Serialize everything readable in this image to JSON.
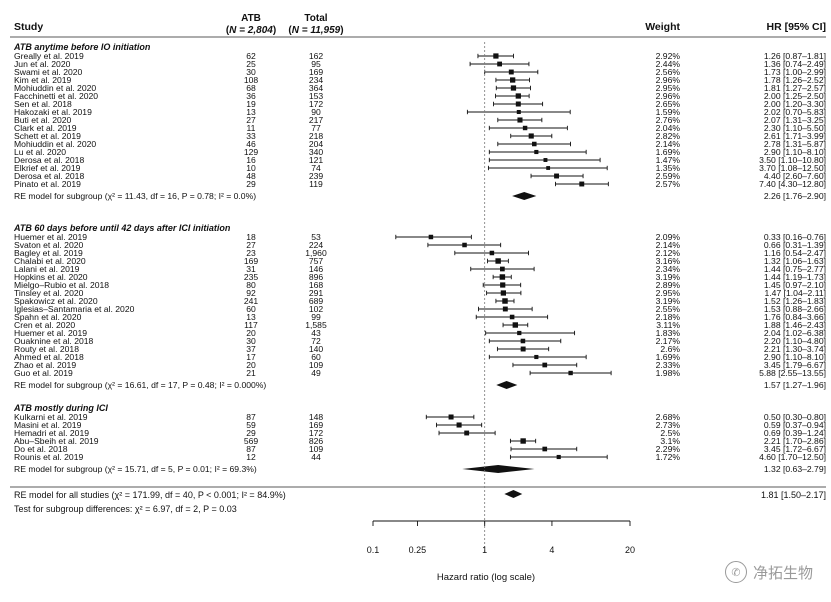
{
  "headers": {
    "study": "Study",
    "atb": "ATB",
    "atb_n": "N = 2,804",
    "total": "Total",
    "total_n": "N = 11,959",
    "weight": "Weight",
    "hr": "HR [95% CI]"
  },
  "chart_data": {
    "type": "forest",
    "x_scale": "log",
    "xlabel": "Hazard ratio (log scale)",
    "xlim": [
      0.1,
      20
    ],
    "xticks": [
      "0.1",
      "0.25",
      "1",
      "4",
      "20"
    ],
    "xtick_values": [
      0.1,
      0.25,
      1,
      4,
      20
    ],
    "reference_line": 1,
    "groups": [
      {
        "title": "ATB anytime before IO initiation",
        "studies": [
          {
            "study": "Greally et al. 2019",
            "atb": "62",
            "total": "162",
            "weight": "2.92%",
            "hr": 1.26,
            "lo": 0.87,
            "hi": 1.81,
            "ci": "1.26 [0.87–1.81]"
          },
          {
            "study": "Jun et al. 2020",
            "atb": "25",
            "total": "95",
            "weight": "2.44%",
            "hr": 1.36,
            "lo": 0.74,
            "hi": 2.49,
            "ci": "1.36 [0.74–2.49]"
          },
          {
            "study": "Swami et al. 2020",
            "atb": "30",
            "total": "169",
            "weight": "2.56%",
            "hr": 1.73,
            "lo": 1.0,
            "hi": 2.99,
            "ci": "1.73 [1.00–2.99]"
          },
          {
            "study": "Kim et al. 2019",
            "atb": "108",
            "total": "234",
            "weight": "2.96%",
            "hr": 1.78,
            "lo": 1.26,
            "hi": 2.52,
            "ci": "1.78 [1.26–2.52]"
          },
          {
            "study": "Mohiuddin et al. 2020",
            "atb": "68",
            "total": "364",
            "weight": "2.95%",
            "hr": 1.81,
            "lo": 1.27,
            "hi": 2.57,
            "ci": "1.81 [1.27–2.57]"
          },
          {
            "study": "Facchinetti et al. 2020",
            "atb": "36",
            "total": "153",
            "weight": "2.96%",
            "hr": 2.0,
            "lo": 1.25,
            "hi": 2.5,
            "ci": "2.00 [1.25–2.50]"
          },
          {
            "study": "Sen et al. 2018",
            "atb": "19",
            "total": "172",
            "weight": "2.65%",
            "hr": 2.0,
            "lo": 1.2,
            "hi": 3.3,
            "ci": "2.00 [1.20–3.30]"
          },
          {
            "study": "Hakozaki et al. 2019",
            "atb": "13",
            "total": "90",
            "weight": "1.59%",
            "hr": 2.02,
            "lo": 0.7,
            "hi": 5.83,
            "ci": "2.02 [0.70–5.83]"
          },
          {
            "study": "Buti et al. 2020",
            "atb": "27",
            "total": "217",
            "weight": "2.76%",
            "hr": 2.07,
            "lo": 1.31,
            "hi": 3.25,
            "ci": "2.07 [1.31–3.25]"
          },
          {
            "study": "Clark et al. 2019",
            "atb": "11",
            "total": "77",
            "weight": "2.04%",
            "hr": 2.3,
            "lo": 1.1,
            "hi": 5.5,
            "ci": "2.30 [1.10–5.50]"
          },
          {
            "study": "Schett et al. 2019",
            "atb": "33",
            "total": "218",
            "weight": "2.82%",
            "hr": 2.61,
            "lo": 1.71,
            "hi": 3.99,
            "ci": "2.61 [1.71–3.99]"
          },
          {
            "study": "Mohiuddin et al. 2020",
            "atb": "46",
            "total": "204",
            "weight": "2.14%",
            "hr": 2.78,
            "lo": 1.31,
            "hi": 5.87,
            "ci": "2.78 [1.31–5.87]"
          },
          {
            "study": "Lu et al. 2020",
            "atb": "129",
            "total": "340",
            "weight": "1.69%",
            "hr": 2.9,
            "lo": 1.1,
            "hi": 8.1,
            "ci": "2.90 [1.10–8.10]"
          },
          {
            "study": "Derosa et al. 2018",
            "atb": "16",
            "total": "121",
            "weight": "1.47%",
            "hr": 3.5,
            "lo": 1.1,
            "hi": 10.8,
            "ci": "3.50 [1.10–10.80]"
          },
          {
            "study": "Elkrief et al. 2019",
            "atb": "10",
            "total": "74",
            "weight": "1.35%",
            "hr": 3.7,
            "lo": 1.08,
            "hi": 12.5,
            "ci": "3.70 [1.08–12.50]"
          },
          {
            "study": "Derosa et al. 2018",
            "atb": "48",
            "total": "239",
            "weight": "2.59%",
            "hr": 4.4,
            "lo": 2.6,
            "hi": 7.6,
            "ci": "4.40 [2.60–7.60]"
          },
          {
            "study": "Pinato et al. 2019",
            "atb": "29",
            "total": "119",
            "weight": "2.57%",
            "hr": 7.4,
            "lo": 4.3,
            "hi": 12.8,
            "ci": "7.40 [4.30–12.80]"
          }
        ],
        "summary": {
          "label": "RE model for subgroup (χ² = 11.43, df = 16, P = 0.78; I² = 0.0%)",
          "hr": 2.26,
          "lo": 1.76,
          "hi": 2.9,
          "ci": "2.26 [1.76–2.90]"
        }
      },
      {
        "title": "ATB 60 days before until 42 days after ICI initiation",
        "studies": [
          {
            "study": "Huemer et al. 2019",
            "atb": "18",
            "total": "53",
            "weight": "2.09%",
            "hr": 0.33,
            "lo": 0.16,
            "hi": 0.76,
            "ci": "0.33 [0.16–0.76]"
          },
          {
            "study": "Svaton et al. 2020",
            "atb": "27",
            "total": "224",
            "weight": "2.14%",
            "hr": 0.66,
            "lo": 0.31,
            "hi": 1.39,
            "ci": "0.66 [0.31–1.39]"
          },
          {
            "study": "Bagley et al. 2019",
            "atb": "23",
            "total": "1,960",
            "weight": "2.12%",
            "hr": 1.16,
            "lo": 0.54,
            "hi": 2.47,
            "ci": "1.16 [0.54–2.47]"
          },
          {
            "study": "Chalabi et al. 2020",
            "atb": "169",
            "total": "757",
            "weight": "3.16%",
            "hr": 1.32,
            "lo": 1.06,
            "hi": 1.63,
            "ci": "1.32 [1.06–1.63]"
          },
          {
            "study": "Lalani et al. 2019",
            "atb": "31",
            "total": "146",
            "weight": "2.34%",
            "hr": 1.44,
            "lo": 0.75,
            "hi": 2.77,
            "ci": "1.44 [0.75–2.77]"
          },
          {
            "study": "Hopkins et al. 2020",
            "atb": "235",
            "total": "896",
            "weight": "3.19%",
            "hr": 1.44,
            "lo": 1.19,
            "hi": 1.73,
            "ci": "1.44 [1.19–1.73]"
          },
          {
            "study": "Mielgo–Rubio et al. 2018",
            "atb": "80",
            "total": "168",
            "weight": "2.89%",
            "hr": 1.45,
            "lo": 0.97,
            "hi": 2.1,
            "ci": "1.45 [0.97–2.10]"
          },
          {
            "study": "Tinsley et al. 2020",
            "atb": "92",
            "total": "291",
            "weight": "2.95%",
            "hr": 1.47,
            "lo": 1.04,
            "hi": 2.11,
            "ci": "1.47 [1.04–2.11]"
          },
          {
            "study": "Spakowicz et al. 2020",
            "atb": "241",
            "total": "689",
            "weight": "3.19%",
            "hr": 1.52,
            "lo": 1.26,
            "hi": 1.83,
            "ci": "1.52 [1.26–1.83]"
          },
          {
            "study": "Iglesias–Santamaria et al. 2020",
            "atb": "60",
            "total": "102",
            "weight": "2.55%",
            "hr": 1.53,
            "lo": 0.88,
            "hi": 2.66,
            "ci": "1.53 [0.88–2.66]"
          },
          {
            "study": "Spahn et al. 2020",
            "atb": "13",
            "total": "99",
            "weight": "2.18%",
            "hr": 1.76,
            "lo": 0.84,
            "hi": 3.66,
            "ci": "1.76 [0.84–3.66]"
          },
          {
            "study": "Cren et al. 2020",
            "atb": "117",
            "total": "1,585",
            "weight": "3.11%",
            "hr": 1.88,
            "lo": 1.46,
            "hi": 2.43,
            "ci": "1.88 [1.46–2.43]"
          },
          {
            "study": "Huemer et al. 2019",
            "atb": "20",
            "total": "43",
            "weight": "1.83%",
            "hr": 2.04,
            "lo": 1.02,
            "hi": 6.38,
            "ci": "2.04 [1.02–6.38]"
          },
          {
            "study": "Ouaknine et al. 2018",
            "atb": "30",
            "total": "72",
            "weight": "2.17%",
            "hr": 2.2,
            "lo": 1.1,
            "hi": 4.8,
            "ci": "2.20 [1.10–4.80]"
          },
          {
            "study": "Routy et al. 2018",
            "atb": "37",
            "total": "140",
            "weight": "2.6%",
            "hr": 2.21,
            "lo": 1.3,
            "hi": 3.74,
            "ci": "2.21 [1.30–3.74]"
          },
          {
            "study": "Ahmed et al. 2018",
            "atb": "17",
            "total": "60",
            "weight": "1.69%",
            "hr": 2.9,
            "lo": 1.1,
            "hi": 8.1,
            "ci": "2.90 [1.10–8.10]"
          },
          {
            "study": "Zhao et al. 2019",
            "atb": "20",
            "total": "109",
            "weight": "2.33%",
            "hr": 3.45,
            "lo": 1.79,
            "hi": 6.67,
            "ci": "3.45 [1.79–6.67]"
          },
          {
            "study": "Guo et al. 2019",
            "atb": "21",
            "total": "49",
            "weight": "1.98%",
            "hr": 5.88,
            "lo": 2.55,
            "hi": 13.55,
            "ci": "5.88 [2.55–13.55]"
          }
        ],
        "summary": {
          "label": "RE model for subgroup (χ² = 16.61, df = 17, P = 0.48; I² = 0.000%)",
          "hr": 1.57,
          "lo": 1.27,
          "hi": 1.96,
          "ci": "1.57 [1.27–1.96]"
        }
      },
      {
        "title": "ATB mostly during ICI",
        "studies": [
          {
            "study": "Kulkarni et al. 2019",
            "atb": "87",
            "total": "148",
            "weight": "2.68%",
            "hr": 0.5,
            "lo": 0.3,
            "hi": 0.8,
            "ci": "0.50 [0.30–0.80]"
          },
          {
            "study": "Masini et al. 2019",
            "atb": "59",
            "total": "169",
            "weight": "2.73%",
            "hr": 0.59,
            "lo": 0.37,
            "hi": 0.94,
            "ci": "0.59 [0.37–0.94]"
          },
          {
            "study": "Hemadri et al. 2019",
            "atb": "29",
            "total": "172",
            "weight": "2.5%",
            "hr": 0.69,
            "lo": 0.39,
            "hi": 1.24,
            "ci": "0.69 [0.39–1.24]"
          },
          {
            "study": "Abu–Sbeih et al. 2019",
            "atb": "569",
            "total": "826",
            "weight": "3.1%",
            "hr": 2.21,
            "lo": 1.7,
            "hi": 2.86,
            "ci": "2.21 [1.70–2.86]"
          },
          {
            "study": "Do et al. 2018",
            "atb": "87",
            "total": "109",
            "weight": "2.29%",
            "hr": 3.45,
            "lo": 1.72,
            "hi": 6.67,
            "ci": "3.45 [1.72–6.67]"
          },
          {
            "study": "Rounis et al. 2019",
            "atb": "12",
            "total": "44",
            "weight": "1.72%",
            "hr": 4.6,
            "lo": 1.7,
            "hi": 12.5,
            "ci": "4.60 [1.70–12.50]"
          }
        ],
        "summary": {
          "label": "RE model for subgroup (χ² = 15.71, df = 5, P = 0.01; I² = 69.3%)",
          "hr": 1.32,
          "lo": 0.63,
          "hi": 2.79,
          "ci": "1.32 [0.63–2.79]"
        }
      }
    ],
    "overall": {
      "label": "RE model for all studies (χ² = 171.99, df = 40, P < 0.001; I² = 84.9%)",
      "hr": 1.81,
      "lo": 1.5,
      "hi": 2.17,
      "ci": "1.81 [1.50–2.17]"
    },
    "subgroup_test": "Test for subgroup differences: χ² = 6.97, df = 2, P = 0.03"
  },
  "watermark": {
    "text": "净拓生物",
    "icon": "wechat-icon"
  }
}
